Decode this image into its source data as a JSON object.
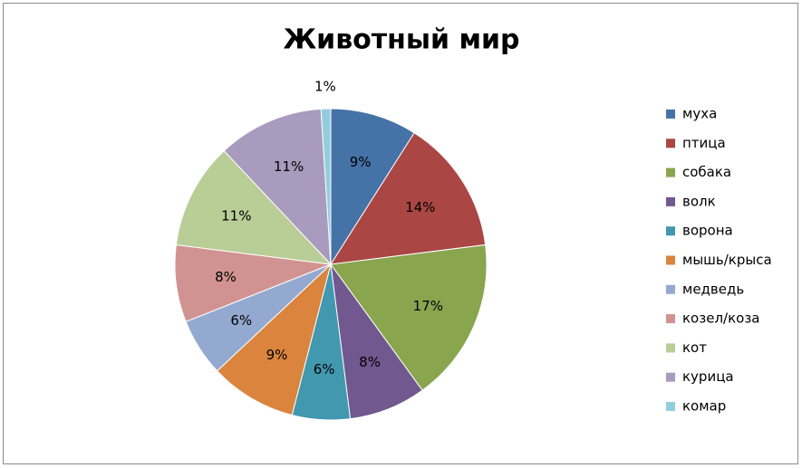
{
  "chart_data": {
    "type": "pie",
    "title": "Животный мир",
    "categories": [
      "муха",
      "птица",
      "собака",
      "волк",
      "ворона",
      "мышь/крыса",
      "медведь",
      "козел/коза",
      "кот",
      "курица",
      "комар"
    ],
    "values": [
      9,
      14,
      17,
      8,
      6,
      9,
      6,
      8,
      11,
      11,
      1
    ],
    "value_labels": [
      "9%",
      "14%",
      "17%",
      "8%",
      "6%",
      "9%",
      "6%",
      "8%",
      "11%",
      "11%",
      "1%"
    ],
    "colors": [
      "#4572A7",
      "#AA4643",
      "#89A54E",
      "#71588F",
      "#4198AF",
      "#DB843D",
      "#93A9CF",
      "#D19392",
      "#B9CD96",
      "#A99BBD",
      "#92CDDC"
    ],
    "legend": "right"
  }
}
